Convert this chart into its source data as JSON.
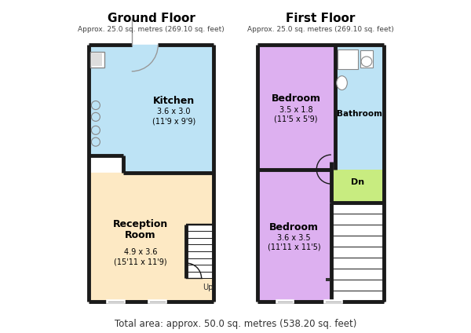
{
  "bg_color": "#ffffff",
  "wall_color": "#1a1a1a",
  "wall_lw": 3.5,
  "ground_title": "Ground Floor",
  "ground_sub": "Approx. 25.0 sq. metres (269.10 sq. feet)",
  "first_title": "First Floor",
  "first_sub": "Approx. 25.0 sq. metres (269.10 sq. feet)",
  "total_area": "Total area: approx. 50.0 sq. metres (538.20 sq. feet)",
  "kitchen_color": "#bde3f5",
  "reception_color": "#fde9c4",
  "bedroom_color": "#ddb0f0",
  "bathroom_color": "#bde3f5",
  "landing_color": "#c8ec80"
}
